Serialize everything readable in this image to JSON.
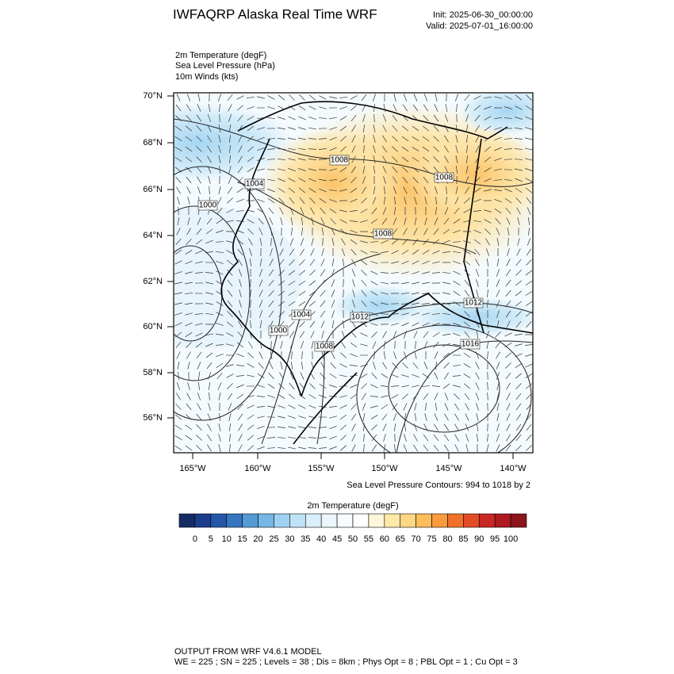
{
  "header": {
    "title": "IWFAQRP Alaska Real Time WRF",
    "init": "Init: 2025-06-30_00:00:00",
    "valid": "Valid: 2025-07-01_16:00:00"
  },
  "fields": [
    "2m Temperature   (degF)",
    "Sea Level Pressure   (hPa)",
    "10m Winds   (kts)"
  ],
  "map": {
    "lat_labels": [
      "70°N",
      "68°N",
      "66°N",
      "64°N",
      "62°N",
      "60°N",
      "58°N",
      "56°N"
    ],
    "lon_labels": [
      "165°W",
      "160°W",
      "155°W",
      "150°W",
      "145°W",
      "140°W"
    ],
    "contour_labels": [
      "1008",
      "1004",
      "1000",
      "1008",
      "1008",
      "1012",
      "1004",
      "1012",
      "1000",
      "1008",
      "1016"
    ]
  },
  "contour_note": "Sea Level Pressure Contours: 994 to 1018 by 2",
  "colorbar": {
    "title": "2m Temperature  (degF)",
    "colors": [
      "#172b66",
      "#1c3d8c",
      "#2456a8",
      "#3675bf",
      "#529bd4",
      "#76b7e5",
      "#9fd2f2",
      "#bfe3f6",
      "#daeffa",
      "#ecf6fc",
      "#f7fbfe",
      "#ffffff",
      "#fff6da",
      "#fee9a9",
      "#fdd783",
      "#fcbd5b",
      "#f89c3b",
      "#f0722a",
      "#e14b26",
      "#c92626",
      "#ad1a1f",
      "#8c141a"
    ],
    "labels": [
      0,
      5,
      10,
      15,
      20,
      25,
      30,
      35,
      40,
      45,
      50,
      55,
      60,
      65,
      70,
      75,
      80,
      85,
      90,
      95,
      100
    ]
  },
  "footer": [
    "OUTPUT FROM WRF V4.6.1 MODEL",
    "WE = 225 ; SN = 225 ; Levels = 38 ; Dis = 8km ; Phys Opt = 8 ; PBL Opt = 1 ; Cu Opt = 3"
  ]
}
